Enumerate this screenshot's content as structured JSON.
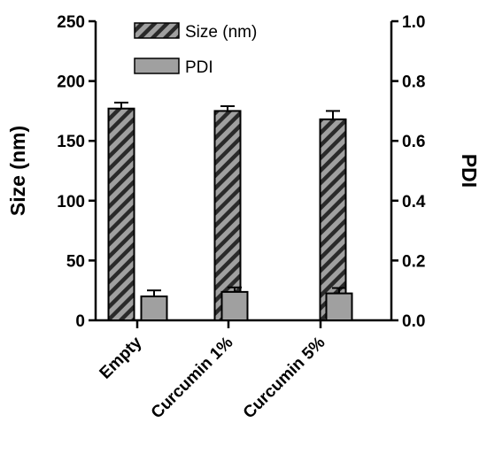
{
  "chart_data": {
    "type": "bar",
    "categories": [
      "Empty",
      "Curcumin 1%",
      "Curcumin 5%"
    ],
    "series": [
      {
        "name": "Size (nm)",
        "axis": "left",
        "values": [
          177,
          175,
          168
        ],
        "errors": [
          5,
          4,
          7
        ],
        "fill": "#a0a0a0",
        "pattern": "diagonal-hatch"
      },
      {
        "name": "PDI",
        "axis": "right",
        "values": [
          0.08,
          0.095,
          0.09
        ],
        "errors": [
          0.02,
          0.015,
          0.018
        ],
        "fill": "#a0a0a0",
        "pattern": "solid"
      }
    ],
    "ylabel": "Size (nm)",
    "ylabel_right": "PDI",
    "xlabel": "",
    "ylim": [
      0,
      250
    ],
    "yticks": [
      "0",
      "50",
      "100",
      "150",
      "200",
      "250"
    ],
    "ylim_right": [
      0,
      1.0
    ],
    "yticks_right": [
      "0.0",
      "0.2",
      "0.4",
      "0.6",
      "0.8",
      "1.0"
    ],
    "legend": {
      "placement": "top-center",
      "entries": [
        "Size (nm)",
        "PDI"
      ]
    },
    "grid": false,
    "colors": {
      "bar_fill": "#a0a0a0",
      "stroke": "#000000",
      "hatch": "#2a2a2a"
    }
  }
}
